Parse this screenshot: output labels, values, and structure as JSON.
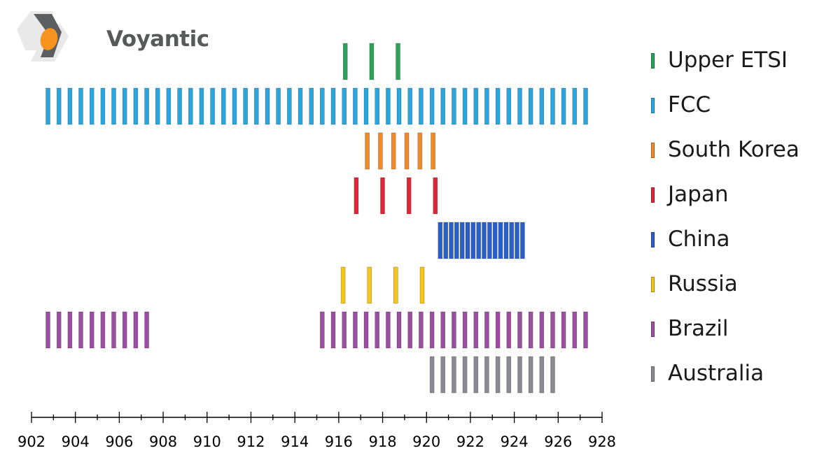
{
  "brand": {
    "name": "Voyantic"
  },
  "chart_data": {
    "type": "bar",
    "xlim": [
      902,
      928
    ],
    "x_ticks": [
      902,
      904,
      906,
      908,
      910,
      912,
      914,
      916,
      918,
      920,
      922,
      924,
      926,
      928
    ],
    "grid": false,
    "legend_position": "right",
    "title": "",
    "xlabel": "",
    "ylabel": "",
    "series": [
      {
        "name": "Upper ETSI",
        "color": "#2ba35a",
        "channels_mhz": [
          916.3,
          917.5,
          918.7
        ]
      },
      {
        "name": "FCC",
        "color": "#2aa6df",
        "channels_mhz": [
          902.75,
          903.25,
          903.75,
          904.25,
          904.75,
          905.25,
          905.75,
          906.25,
          906.75,
          907.25,
          907.75,
          908.25,
          908.75,
          909.25,
          909.75,
          910.25,
          910.75,
          911.25,
          911.75,
          912.25,
          912.75,
          913.25,
          913.75,
          914.25,
          914.75,
          915.25,
          915.75,
          916.25,
          916.75,
          917.25,
          917.75,
          918.25,
          918.75,
          919.25,
          919.75,
          920.25,
          920.75,
          921.25,
          921.75,
          922.25,
          922.75,
          923.25,
          923.75,
          924.25,
          924.75,
          925.25,
          925.75,
          926.25,
          926.75,
          927.25
        ]
      },
      {
        "name": "South Korea",
        "color": "#f08b2c",
        "channels_mhz": [
          917.3,
          917.9,
          918.5,
          919.1,
          919.7,
          920.3
        ]
      },
      {
        "name": "Japan",
        "color": "#e0243a",
        "channels_mhz": [
          916.8,
          918.0,
          919.2,
          920.4
        ]
      },
      {
        "name": "China",
        "color": "#2a5fc8",
        "channels_mhz": [
          920.625,
          920.875,
          921.125,
          921.375,
          921.625,
          921.875,
          922.125,
          922.375,
          922.625,
          922.875,
          923.125,
          923.375,
          923.625,
          923.875,
          924.125,
          924.375
        ]
      },
      {
        "name": "Russia",
        "color": "#f5c51a",
        "channels_mhz": [
          916.2,
          917.4,
          918.6,
          919.8
        ]
      },
      {
        "name": "Brazil",
        "color": "#9b4fa0",
        "channels_mhz": [
          902.75,
          903.25,
          903.75,
          904.25,
          904.75,
          905.25,
          905.75,
          906.25,
          906.75,
          907.25,
          915.25,
          915.75,
          916.25,
          916.75,
          917.25,
          917.75,
          918.25,
          918.75,
          919.25,
          919.75,
          920.25,
          920.75,
          921.25,
          921.75,
          922.25,
          922.75,
          923.25,
          923.75,
          924.25,
          924.75,
          925.25,
          925.75,
          926.25,
          926.75,
          927.25
        ]
      },
      {
        "name": "Australia",
        "color": "#8a8a90",
        "channels_mhz": [
          920.25,
          920.75,
          921.25,
          921.75,
          922.25,
          922.75,
          923.25,
          923.75,
          924.25,
          924.75,
          925.25,
          925.75
        ]
      }
    ]
  }
}
